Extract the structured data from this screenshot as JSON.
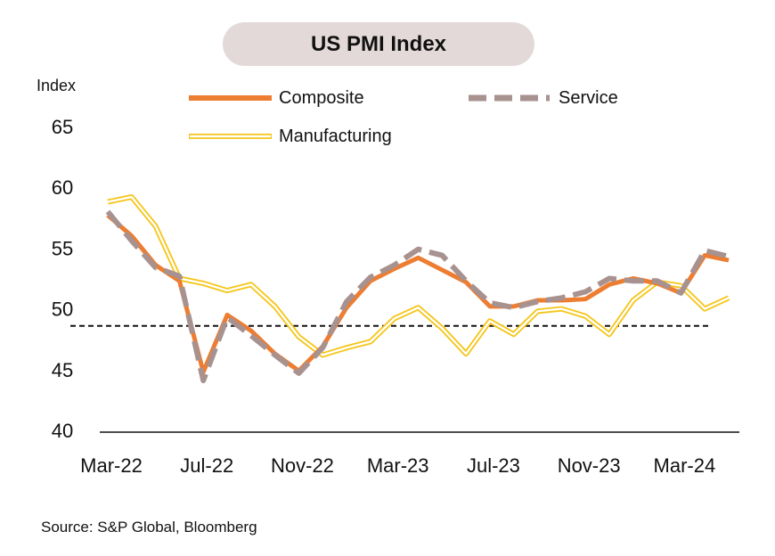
{
  "chart_data": {
    "type": "line",
    "title": "US PMI Index",
    "ylabel": "Index",
    "ylim": [
      40,
      65
    ],
    "yticks": [
      40,
      45,
      50,
      55,
      60,
      65
    ],
    "x_tick_labels": [
      "Mar-22",
      "Jul-22",
      "Nov-22",
      "Mar-23",
      "Jul-23",
      "Nov-23",
      "Mar-24"
    ],
    "x_tick_month_index": [
      0,
      4,
      8,
      12,
      16,
      20,
      24
    ],
    "x_start": "Mar-22",
    "x_end": "May-24",
    "reference_line": {
      "value": 48.6,
      "style": "dashed"
    },
    "legend_placement": "top",
    "grid": false,
    "series": [
      {
        "name": "Composite",
        "color": "#ed7d31",
        "style": "solid-thick",
        "x": [
          "Mar-22",
          "Apr-22",
          "May-22",
          "Jun-22",
          "Jul-22",
          "Aug-22",
          "Sep-22",
          "Oct-22",
          "Nov-22",
          "Dec-22",
          "Jan-23",
          "Feb-23",
          "Mar-23",
          "Apr-23",
          "May-23",
          "Jun-23",
          "Jul-23",
          "Aug-23",
          "Sep-23",
          "Oct-23",
          "Nov-23",
          "Dec-23",
          "Jan-24",
          "Feb-24",
          "Mar-24",
          "Apr-24",
          "May-24"
        ],
        "values": [
          57.7,
          56.0,
          53.6,
          52.3,
          44.8,
          49.5,
          48.2,
          46.3,
          44.9,
          46.9,
          50.1,
          52.3,
          53.3,
          54.2,
          53.2,
          52.2,
          50.2,
          50.2,
          50.7,
          50.7,
          50.8,
          52.0,
          52.5,
          52.1,
          51.3,
          54.4,
          54.0
        ]
      },
      {
        "name": "Service",
        "color": "#a79290",
        "style": "dashed-thick",
        "x": [
          "Mar-22",
          "Apr-22",
          "May-22",
          "Jun-22",
          "Jul-22",
          "Aug-22",
          "Sep-22",
          "Oct-22",
          "Nov-22",
          "Dec-22",
          "Jan-23",
          "Feb-23",
          "Mar-23",
          "Apr-23",
          "May-23",
          "Jun-23",
          "Jul-23",
          "Aug-23",
          "Sep-23",
          "Oct-23",
          "Nov-23",
          "Dec-23",
          "Jan-24",
          "Feb-24",
          "Mar-24",
          "Apr-24",
          "May-24"
        ],
        "values": [
          58.0,
          55.6,
          53.4,
          52.7,
          44.1,
          49.3,
          47.8,
          46.2,
          44.7,
          46.8,
          50.6,
          52.6,
          53.6,
          54.9,
          54.4,
          52.3,
          50.5,
          50.1,
          50.6,
          50.9,
          51.4,
          52.5,
          52.3,
          52.3,
          51.3,
          54.8,
          54.3
        ]
      },
      {
        "name": "Manufacturing",
        "color": "#f5c518",
        "style": "double-line",
        "x": [
          "Mar-22",
          "Apr-22",
          "May-22",
          "Jun-22",
          "Jul-22",
          "Aug-22",
          "Sep-22",
          "Oct-22",
          "Nov-22",
          "Dec-22",
          "Jan-23",
          "Feb-23",
          "Mar-23",
          "Apr-23",
          "May-23",
          "Jun-23",
          "Jul-23",
          "Aug-23",
          "Sep-23",
          "Oct-23",
          "Nov-23",
          "Dec-23",
          "Jan-24",
          "Feb-24",
          "Mar-24",
          "Apr-24",
          "May-24"
        ],
        "values": [
          58.8,
          59.2,
          56.8,
          52.5,
          52.1,
          51.5,
          52.0,
          50.2,
          47.7,
          46.2,
          46.8,
          47.3,
          49.2,
          50.1,
          48.4,
          46.3,
          49.0,
          47.9,
          49.8,
          50.0,
          49.4,
          47.9,
          50.7,
          52.2,
          51.9,
          50.0,
          50.9
        ]
      }
    ]
  },
  "source_text": "Source: S&P Global, Bloomberg"
}
